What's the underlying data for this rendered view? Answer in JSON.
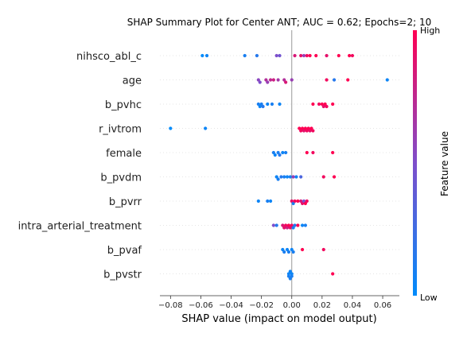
{
  "chart_data": {
    "type": "scatter",
    "subtype": "shap-beeswarm",
    "title": "SHAP Summary Plot for Center ANT; AUC = 0.62; Epochs=2; 10",
    "xlabel": "SHAP value (impact on model output)",
    "xlim": [
      -0.087,
      0.071
    ],
    "xticks": [
      -0.08,
      -0.06,
      -0.04,
      -0.02,
      0.0,
      0.02,
      0.04,
      0.06
    ],
    "xtick_labels": [
      "−0.08",
      "−0.06",
      "−0.04",
      "−0.02",
      "0.00",
      "0.02",
      "0.04",
      "0.06"
    ],
    "grid": "horizontal-dotted",
    "colorbar": {
      "title": "Feature value",
      "high_label": "High",
      "low_label": "Low",
      "low_color": "#008bfb",
      "high_color": "#ff0052"
    },
    "features": [
      {
        "name": "nihsco_abl_c",
        "points": [
          {
            "x": -0.059,
            "c": 0.0
          },
          {
            "x": -0.056,
            "c": 0.05
          },
          {
            "x": -0.031,
            "c": 0.1
          },
          {
            "x": -0.023,
            "c": 0.15
          },
          {
            "x": -0.01,
            "c": 0.5
          },
          {
            "x": -0.008,
            "c": 0.45
          },
          {
            "x": 0.002,
            "c": 0.85
          },
          {
            "x": 0.006,
            "c": 0.9
          },
          {
            "x": 0.008,
            "c": 0.6
          },
          {
            "x": 0.01,
            "c": 0.95
          },
          {
            "x": 0.012,
            "c": 1.0
          },
          {
            "x": 0.016,
            "c": 1.0
          },
          {
            "x": 0.023,
            "c": 0.9
          },
          {
            "x": 0.031,
            "c": 1.0
          },
          {
            "x": 0.038,
            "c": 1.0
          },
          {
            "x": 0.04,
            "c": 0.95
          }
        ]
      },
      {
        "name": "age",
        "points": [
          {
            "x": -0.022,
            "c": 0.55
          },
          {
            "x": -0.021,
            "c": 0.5
          },
          {
            "x": -0.017,
            "c": 0.7
          },
          {
            "x": -0.016,
            "c": 0.6
          },
          {
            "x": -0.014,
            "c": 0.75
          },
          {
            "x": -0.012,
            "c": 0.8
          },
          {
            "x": -0.009,
            "c": 0.65
          },
          {
            "x": -0.005,
            "c": 0.7
          },
          {
            "x": -0.004,
            "c": 0.85
          },
          {
            "x": 0.0,
            "c": 0.6
          },
          {
            "x": 0.023,
            "c": 0.95
          },
          {
            "x": 0.028,
            "c": 0.15
          },
          {
            "x": 0.037,
            "c": 1.0
          },
          {
            "x": 0.063,
            "c": 0.05
          }
        ]
      },
      {
        "name": "b_pvhc",
        "points": [
          {
            "x": -0.022,
            "c": 0.1
          },
          {
            "x": -0.021,
            "c": 0.05
          },
          {
            "x": -0.02,
            "c": 0.1
          },
          {
            "x": -0.019,
            "c": 0.15
          },
          {
            "x": -0.016,
            "c": 0.05
          },
          {
            "x": -0.013,
            "c": 0.1
          },
          {
            "x": -0.008,
            "c": 0.05
          },
          {
            "x": 0.014,
            "c": 1.0
          },
          {
            "x": 0.018,
            "c": 0.95
          },
          {
            "x": 0.02,
            "c": 1.0
          },
          {
            "x": 0.021,
            "c": 0.9
          },
          {
            "x": 0.022,
            "c": 1.0
          },
          {
            "x": 0.023,
            "c": 0.95
          },
          {
            "x": 0.027,
            "c": 1.0
          }
        ]
      },
      {
        "name": "r_ivtrom",
        "points": [
          {
            "x": -0.08,
            "c": 0.0
          },
          {
            "x": -0.057,
            "c": 0.05
          },
          {
            "x": 0.005,
            "c": 1.0
          },
          {
            "x": 0.006,
            "c": 0.95
          },
          {
            "x": 0.007,
            "c": 1.0
          },
          {
            "x": 0.008,
            "c": 0.9
          },
          {
            "x": 0.009,
            "c": 1.0
          },
          {
            "x": 0.01,
            "c": 0.95
          },
          {
            "x": 0.011,
            "c": 1.0
          },
          {
            "x": 0.012,
            "c": 0.9
          },
          {
            "x": 0.013,
            "c": 1.0
          },
          {
            "x": 0.014,
            "c": 0.95
          }
        ]
      },
      {
        "name": "female",
        "points": [
          {
            "x": -0.012,
            "c": 0.1
          },
          {
            "x": -0.011,
            "c": 0.05
          },
          {
            "x": -0.009,
            "c": 0.1
          },
          {
            "x": -0.008,
            "c": 0.15
          },
          {
            "x": -0.006,
            "c": 0.05
          },
          {
            "x": -0.004,
            "c": 0.1
          },
          {
            "x": 0.01,
            "c": 1.0
          },
          {
            "x": 0.014,
            "c": 0.95
          },
          {
            "x": 0.027,
            "c": 1.0
          }
        ]
      },
      {
        "name": "b_pvdm",
        "points": [
          {
            "x": -0.01,
            "c": 0.05
          },
          {
            "x": -0.009,
            "c": 0.1
          },
          {
            "x": -0.007,
            "c": 0.15
          },
          {
            "x": -0.005,
            "c": 0.1
          },
          {
            "x": -0.003,
            "c": 0.05
          },
          {
            "x": -0.001,
            "c": 0.1
          },
          {
            "x": 0.001,
            "c": 0.6
          },
          {
            "x": 0.003,
            "c": 0.05
          },
          {
            "x": 0.006,
            "c": 0.3
          },
          {
            "x": 0.021,
            "c": 0.95
          },
          {
            "x": 0.028,
            "c": 1.0
          }
        ]
      },
      {
        "name": "b_pvrr",
        "points": [
          {
            "x": -0.022,
            "c": 0.05
          },
          {
            "x": -0.016,
            "c": 0.1
          },
          {
            "x": -0.014,
            "c": 0.05
          },
          {
            "x": 0.0,
            "c": 0.9
          },
          {
            "x": 0.001,
            "c": 0.1
          },
          {
            "x": 0.002,
            "c": 0.95
          },
          {
            "x": 0.004,
            "c": 1.0
          },
          {
            "x": 0.006,
            "c": 0.85
          },
          {
            "x": 0.007,
            "c": 0.9
          },
          {
            "x": 0.008,
            "c": 0.5
          },
          {
            "x": 0.009,
            "c": 1.0
          },
          {
            "x": 0.01,
            "c": 0.95
          }
        ]
      },
      {
        "name": "intra_arterial_treatment",
        "points": [
          {
            "x": -0.012,
            "c": 0.5
          },
          {
            "x": -0.01,
            "c": 0.15
          },
          {
            "x": -0.006,
            "c": 0.85
          },
          {
            "x": -0.005,
            "c": 0.9
          },
          {
            "x": -0.004,
            "c": 0.95
          },
          {
            "x": -0.003,
            "c": 0.8
          },
          {
            "x": -0.002,
            "c": 1.0
          },
          {
            "x": -0.001,
            "c": 0.9
          },
          {
            "x": 0.0,
            "c": 0.95
          },
          {
            "x": 0.001,
            "c": 0.1
          },
          {
            "x": 0.002,
            "c": 0.15
          },
          {
            "x": 0.004,
            "c": 1.0
          },
          {
            "x": 0.007,
            "c": 0.05
          },
          {
            "x": 0.009,
            "c": 0.1
          }
        ]
      },
      {
        "name": "b_pvaf",
        "points": [
          {
            "x": -0.006,
            "c": 0.05
          },
          {
            "x": -0.005,
            "c": 0.1
          },
          {
            "x": -0.003,
            "c": 0.05
          },
          {
            "x": -0.002,
            "c": 0.1
          },
          {
            "x": 0.0,
            "c": 0.05
          },
          {
            "x": 0.001,
            "c": 0.1
          },
          {
            "x": 0.007,
            "c": 1.0
          },
          {
            "x": 0.021,
            "c": 0.95
          }
        ]
      },
      {
        "name": "b_pvstr",
        "points": [
          {
            "x": -0.002,
            "c": 0.05
          },
          {
            "x": -0.002,
            "c": 0.1
          },
          {
            "x": -0.001,
            "c": 0.05
          },
          {
            "x": -0.001,
            "c": 0.1
          },
          {
            "x": 0.0,
            "c": 0.05
          },
          {
            "x": 0.0,
            "c": 0.1
          },
          {
            "x": 0.027,
            "c": 1.0
          }
        ]
      }
    ]
  }
}
